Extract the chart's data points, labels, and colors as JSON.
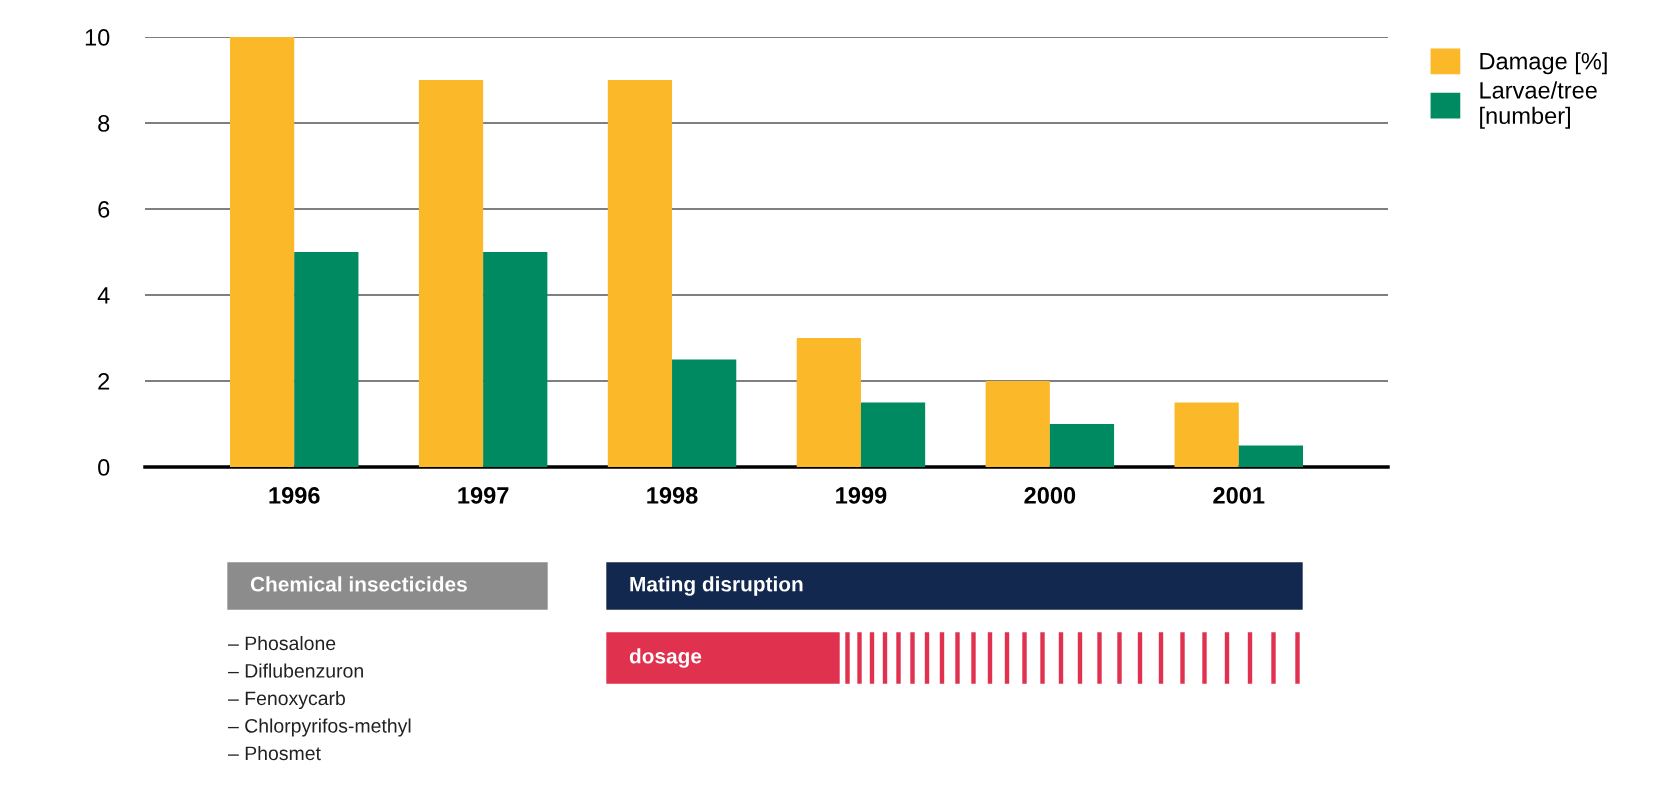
{
  "chart_data": {
    "type": "bar",
    "categories": [
      "1996",
      "1997",
      "1998",
      "1999",
      "2000",
      "2001"
    ],
    "series": [
      {
        "name": "Damage [%]",
        "color": "#fbb829",
        "values": [
          10,
          9,
          9,
          3,
          2,
          1.5
        ]
      },
      {
        "name": "Larvae/tree\n[number]",
        "color": "#008a62",
        "values": [
          5,
          5,
          2.5,
          1.5,
          1,
          0.5
        ]
      }
    ],
    "ylim": [
      0,
      10
    ],
    "yticks": [
      0,
      2,
      4,
      6,
      8,
      10
    ],
    "grid": "y",
    "legend": "top right",
    "annotations": [
      "Chemical insecticides",
      "Mating disruption",
      "dosage",
      "– Phosalone",
      "– Diflubenzuron",
      "– Fenoxycarb",
      "– Chlorpyrifos-methyl",
      "– Phosmet"
    ]
  }
}
